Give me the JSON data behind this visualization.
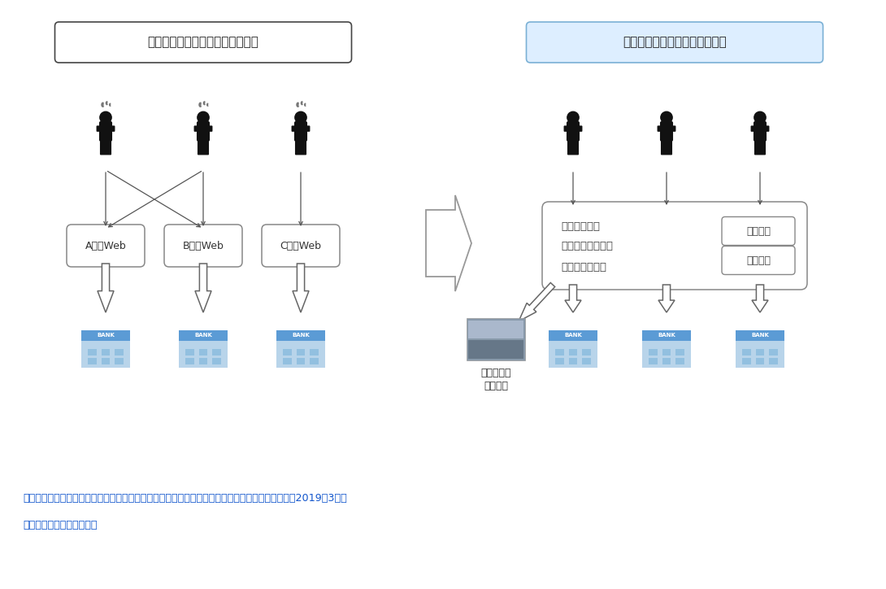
{
  "bg_color": "#ffffff",
  "left_title": "従来のインターネットバンキング",
  "right_title": "金融サービスプラットフォーム",
  "left_title_bg": "#ffffff",
  "right_title_bg": "#ddeeff",
  "left_web_labels": [
    "A銀行Web",
    "B銀行Web",
    "C銀行Web"
  ],
  "platform_line1": "金融サービス",
  "platform_line2": "プラットフォーム",
  "platform_line3": "（＝共通基盤）",
  "service_label": "サービス",
  "agent_label_line1": "電子決済等",
  "agent_label_line2": "代行業者",
  "footer_line1": "出典：岩手銀行、ニュースリリース「金融サービスプラットフォームのサービス開始について」（2019年3月）",
  "footer_line2": "を基に矢野経済研究所作成",
  "footer_color": "#1155cc",
  "person_color": "#111111",
  "arrow_color": "#555555",
  "box_edge_color": "#888888",
  "title_left_edge": "#444444",
  "title_right_edge": "#7ab0d5",
  "bank_top_color": "#5b9bd5",
  "bank_body_color": "#b8d4ea",
  "bank_window_color": "#92c0e0"
}
